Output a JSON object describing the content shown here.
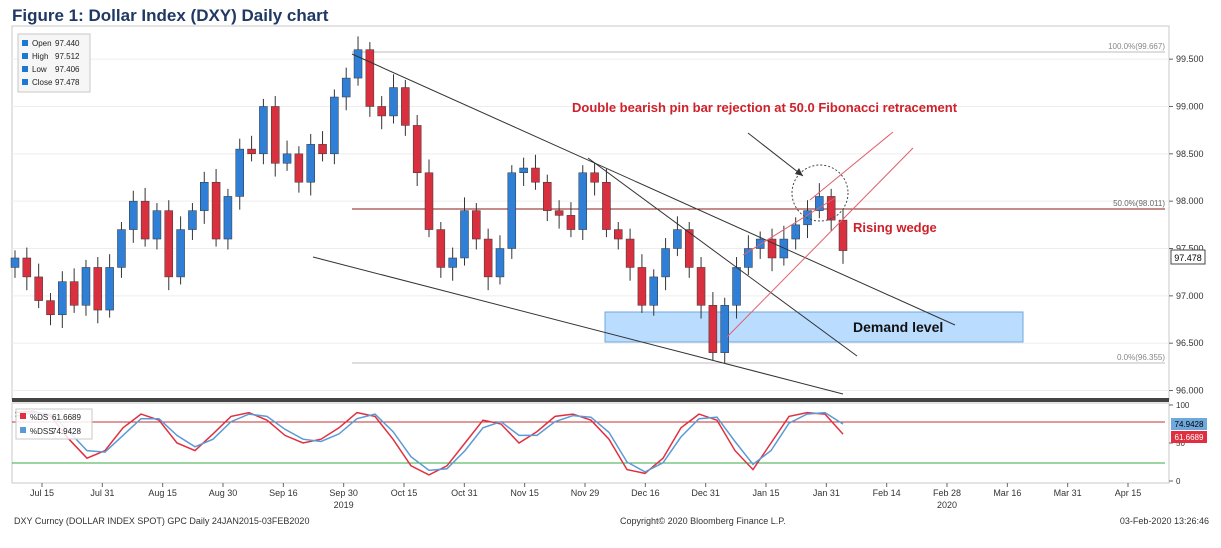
{
  "title": "Figure 1: Dollar Index (DXY) Daily chart",
  "legend": {
    "open_label": "Open",
    "open": "97.440",
    "high_label": "High",
    "high": "97.512",
    "low_label": "Low",
    "low": "97.406",
    "close_label": "Close",
    "close": "97.478"
  },
  "annotations": {
    "pinbar": "Double bearish pin bar rejection at 50.0 Fibonacci retracement",
    "wedge": "Rising wedge",
    "demand": "Demand level",
    "fib100": "100.0%(99.667)",
    "fib50": "50.0%(98.011)",
    "fib0": "0.0%(96.355)",
    "price_tag": "97.478"
  },
  "stoch": {
    "ds_label": "%DS",
    "ds_value": "61.6689",
    "dss_label": "%DSS",
    "dss_value": "74.9428",
    "tag_dss": "74.9428",
    "tag_ds": "61.6689"
  },
  "footer": {
    "left": "DXY Curncy (DOLLAR INDEX SPOT) GPC  Daily 24JAN2015-03FEB2020",
    "center": "Copyright© 2020 Bloomberg Finance L.P.",
    "right": "03-Feb-2020 13:26:46"
  },
  "chart_data": {
    "type": "candlestick",
    "title": "Figure 1: Dollar Index (DXY) Daily chart",
    "y_ticks": [
      "99.500",
      "99.000",
      "98.500",
      "98.000",
      "97.500",
      "97.000",
      "96.500",
      "96.000"
    ],
    "ylim": [
      95.9,
      99.85
    ],
    "x_ticks": [
      "Jul 15",
      "Jul 31",
      "Aug 15",
      "Aug 30",
      "Sep 16",
      "Sep 30",
      "Oct 15",
      "Oct 31",
      "Nov 15",
      "Nov 29",
      "Dec 16",
      "Dec 31",
      "Jan 15",
      "Jan 31",
      "Feb 14",
      "Feb 28",
      "Mar 16",
      "Mar 31",
      "Apr 15"
    ],
    "year_labels": [
      {
        "label": "2019",
        "tick": "Sep 30"
      },
      {
        "label": "2020",
        "tick": "Feb 28"
      }
    ],
    "series": [
      {
        "name": "DXY Close",
        "values": [
          97.4,
          97.2,
          96.95,
          96.8,
          97.15,
          96.9,
          97.3,
          96.85,
          97.3,
          97.7,
          98.0,
          97.6,
          97.9,
          97.2,
          97.7,
          97.9,
          98.2,
          97.6,
          98.05,
          98.55,
          98.5,
          99.0,
          98.4,
          98.5,
          98.2,
          98.6,
          98.5,
          99.1,
          99.3,
          99.6,
          99.0,
          98.9,
          99.2,
          98.8,
          98.3,
          97.7,
          97.3,
          97.4,
          97.9,
          97.6,
          97.2,
          97.5,
          98.3,
          98.35,
          98.2,
          97.9,
          97.85,
          97.7,
          98.3,
          98.2,
          97.7,
          97.6,
          97.3,
          96.9,
          97.2,
          97.5,
          97.7,
          97.3,
          96.9,
          96.4,
          96.9,
          97.3,
          97.5,
          97.6,
          97.4,
          97.6,
          97.75,
          97.9,
          98.05,
          97.8,
          97.478
        ]
      },
      {
        "name": "%DS",
        "values": [
          90,
          92,
          85,
          55,
          30,
          40,
          70,
          88,
          80,
          50,
          40,
          62,
          85,
          90,
          80,
          60,
          50,
          55,
          70,
          90,
          85,
          55,
          20,
          8,
          20,
          50,
          80,
          75,
          50,
          65,
          85,
          88,
          80,
          55,
          15,
          10,
          30,
          70,
          88,
          80,
          40,
          15,
          50,
          85,
          90,
          88,
          61.6689
        ]
      },
      {
        "name": "%DSS",
        "values": [
          85,
          90,
          88,
          65,
          40,
          38,
          60,
          82,
          82,
          60,
          45,
          55,
          78,
          88,
          85,
          68,
          55,
          52,
          62,
          82,
          88,
          65,
          32,
          14,
          16,
          40,
          70,
          78,
          60,
          60,
          78,
          86,
          84,
          64,
          25,
          12,
          24,
          58,
          82,
          84,
          52,
          22,
          40,
          76,
          88,
          90,
          74.9428
        ]
      }
    ],
    "stoch_y_ticks": [
      "100",
      "50",
      "0"
    ],
    "stoch_ylim": [
      0,
      100
    ],
    "stoch_levels": [
      80,
      20
    ],
    "fibonacci_levels": [
      99.667,
      98.011,
      96.355
    ],
    "demand_zone": [
      96.6,
      96.9
    ]
  }
}
